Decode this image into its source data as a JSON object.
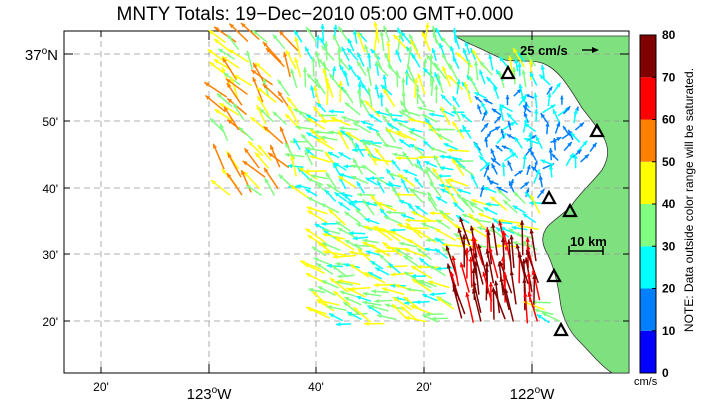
{
  "title": "MNTY Totals: 19−Dec−2010 05:00 GMT+0.000",
  "note": "NOTE: Data outside color range will be saturated.",
  "scale_label": "25 cm/s",
  "distance_label": "10 km",
  "colorbar": {
    "unit": "cm/s",
    "ticks": [
      "0",
      "10",
      "20",
      "30",
      "40",
      "50",
      "60",
      "70",
      "80"
    ],
    "colors": [
      "#0000ff",
      "#0080ff",
      "#00ffff",
      "#80ff80",
      "#ffff00",
      "#ff8000",
      "#ff0000",
      "#800000"
    ]
  },
  "axes": {
    "x_ticks": [
      {
        "label": "20'"
      },
      {
        "label": "123",
        "deg": true,
        "suffix": "W"
      },
      {
        "label": "40'"
      },
      {
        "label": "20'"
      },
      {
        "label": "122",
        "deg": true,
        "suffix": "W"
      }
    ],
    "y_ticks": [
      {
        "label": "37",
        "deg": true,
        "suffix": "N"
      },
      {
        "label": "50'"
      },
      {
        "label": "40'"
      },
      {
        "label": "30'"
      },
      {
        "label": "20'"
      }
    ]
  },
  "colors": {
    "land": "#7fe07f",
    "grid": "#999999",
    "marker": "#000000"
  }
}
